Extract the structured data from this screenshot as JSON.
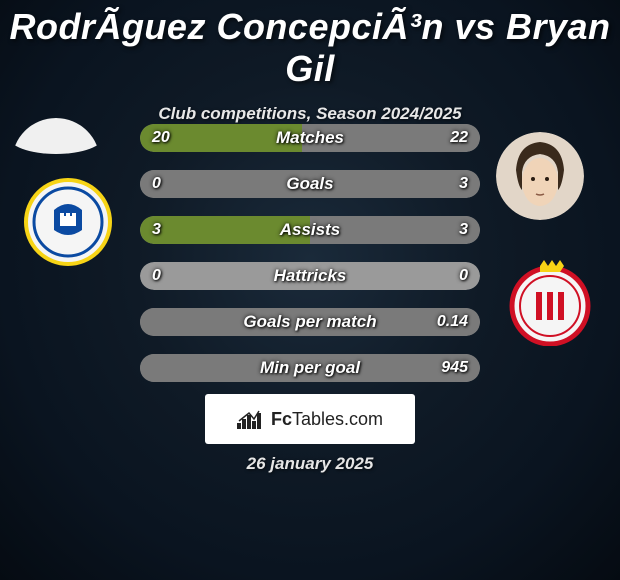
{
  "title": "RodrÃ­guez ConcepciÃ³n vs Bryan Gil",
  "subtitle": "Club competitions, Season 2024/2025",
  "date": "26 january 2025",
  "footer": {
    "brand_prefix": "Fc",
    "brand_suffix": "Tables.com"
  },
  "colors": {
    "left_bar": "#6b8a2f",
    "right_bar": "#7a7a7a",
    "row_bg": "#9a9a9a",
    "background_center": "#1a2a3a",
    "background_outer": "#050b12"
  },
  "stats": [
    {
      "label": "Matches",
      "left_val": "20",
      "right_val": "22",
      "left_pct": 47.6,
      "right_pct": 52.4
    },
    {
      "label": "Goals",
      "left_val": "0",
      "right_val": "3",
      "left_pct": 0,
      "right_pct": 100
    },
    {
      "label": "Assists",
      "left_val": "3",
      "right_val": "3",
      "left_pct": 50,
      "right_pct": 50
    },
    {
      "label": "Hattricks",
      "left_val": "0",
      "right_val": "0",
      "left_pct": 0,
      "right_pct": 0
    },
    {
      "label": "Goals per match",
      "left_val": "",
      "right_val": "0.14",
      "left_pct": 0,
      "right_pct": 100
    },
    {
      "label": "Min per goal",
      "left_val": "",
      "right_val": "945",
      "left_pct": 0,
      "right_pct": 100
    }
  ],
  "player_left": {
    "name": "Rodriguez Concepcion",
    "photo_bg": "#f0f0f0",
    "club": {
      "name": "Las Palmas",
      "badge_bg": "#f5f5f5",
      "primary": "#0b4aa2",
      "accent": "#f7d416"
    }
  },
  "player_right": {
    "name": "Bryan Gil",
    "photo_bg": "#e2d6c8",
    "hair": "#3a2a1c",
    "skin": "#f0d4b8",
    "club": {
      "name": "Girona",
      "badge_bg": "#f5f5f5",
      "primary": "#d01024",
      "accent": "#f7d416"
    }
  }
}
